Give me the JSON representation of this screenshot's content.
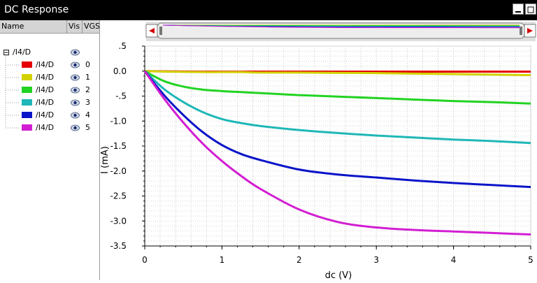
{
  "window": {
    "title": "DC Response"
  },
  "legend": {
    "columns": [
      "Name",
      "Vis",
      "VGS"
    ],
    "parent": {
      "label": "/I4/D",
      "expander": "⊟"
    },
    "items": [
      {
        "label": "/I4/D",
        "color": "#e60000",
        "value": "0",
        "icon": "eye-icon"
      },
      {
        "label": "/I4/D",
        "color": "#d2d200",
        "value": "1",
        "icon": "eye-icon"
      },
      {
        "label": "/I4/D",
        "color": "#22d322",
        "value": "2",
        "icon": "eye-icon"
      },
      {
        "label": "/I4/D",
        "color": "#1fb7b7",
        "value": "3",
        "icon": "eye-icon"
      },
      {
        "label": "/I4/D",
        "color": "#0a14c8",
        "value": "4",
        "icon": "eye-icon"
      },
      {
        "label": "/I4/D",
        "color": "#d21ed2",
        "value": "5",
        "icon": "eye-icon"
      }
    ]
  },
  "chart_data": {
    "type": "line",
    "xlabel": "dc (V)",
    "ylabel": "I (mA)",
    "xlim": [
      0,
      5
    ],
    "ylim": [
      -3.5,
      0.5
    ],
    "xticks": [
      "0",
      "1",
      "2",
      "3",
      "4",
      "5"
    ],
    "yticks": [
      ".5",
      "0.0",
      "-.5",
      "-1.0",
      "-1.5",
      "-2.0",
      "-2.5",
      "-3.0",
      "-3.5"
    ],
    "grid": true,
    "legend_placement": "left panel",
    "x": [
      0,
      0.25,
      0.5,
      0.75,
      1,
      1.25,
      1.5,
      2,
      2.5,
      3,
      3.5,
      4,
      4.5,
      5
    ],
    "series": [
      {
        "name": "/I4/D",
        "vgs": "0",
        "color": "#e60000",
        "values": [
          0,
          -0.005,
          -0.008,
          -0.01,
          -0.01,
          -0.01,
          -0.01,
          -0.01,
          -0.01,
          -0.01,
          -0.01,
          -0.01,
          -0.01,
          -0.01
        ]
      },
      {
        "name": "/I4/D",
        "vgs": "1",
        "color": "#d2d200",
        "values": [
          0,
          -0.01,
          -0.015,
          -0.02,
          -0.02,
          -0.02,
          -0.03,
          -0.03,
          -0.035,
          -0.04,
          -0.05,
          -0.06,
          -0.07,
          -0.08
        ]
      },
      {
        "name": "/I4/D",
        "vgs": "2",
        "color": "#22d322",
        "values": [
          0,
          -0.2,
          -0.31,
          -0.37,
          -0.4,
          -0.42,
          -0.44,
          -0.48,
          -0.51,
          -0.54,
          -0.57,
          -0.6,
          -0.62,
          -0.65
        ]
      },
      {
        "name": "/I4/D",
        "vgs": "3",
        "color": "#1fb7b7",
        "values": [
          0,
          -0.36,
          -0.62,
          -0.82,
          -0.96,
          -1.04,
          -1.1,
          -1.18,
          -1.24,
          -1.29,
          -1.33,
          -1.37,
          -1.4,
          -1.44
        ]
      },
      {
        "name": "/I4/D",
        "vgs": "4",
        "color": "#0a14c8",
        "values": [
          0,
          -0.48,
          -0.88,
          -1.22,
          -1.48,
          -1.66,
          -1.78,
          -1.97,
          -2.07,
          -2.13,
          -2.19,
          -2.24,
          -2.28,
          -2.32
        ]
      },
      {
        "name": "/I4/D",
        "vgs": "5",
        "color": "#d21ed2",
        "values": [
          0,
          -0.55,
          -1.03,
          -1.45,
          -1.8,
          -2.1,
          -2.36,
          -2.77,
          -3.02,
          -3.13,
          -3.18,
          -3.21,
          -3.24,
          -3.27
        ]
      }
    ]
  }
}
